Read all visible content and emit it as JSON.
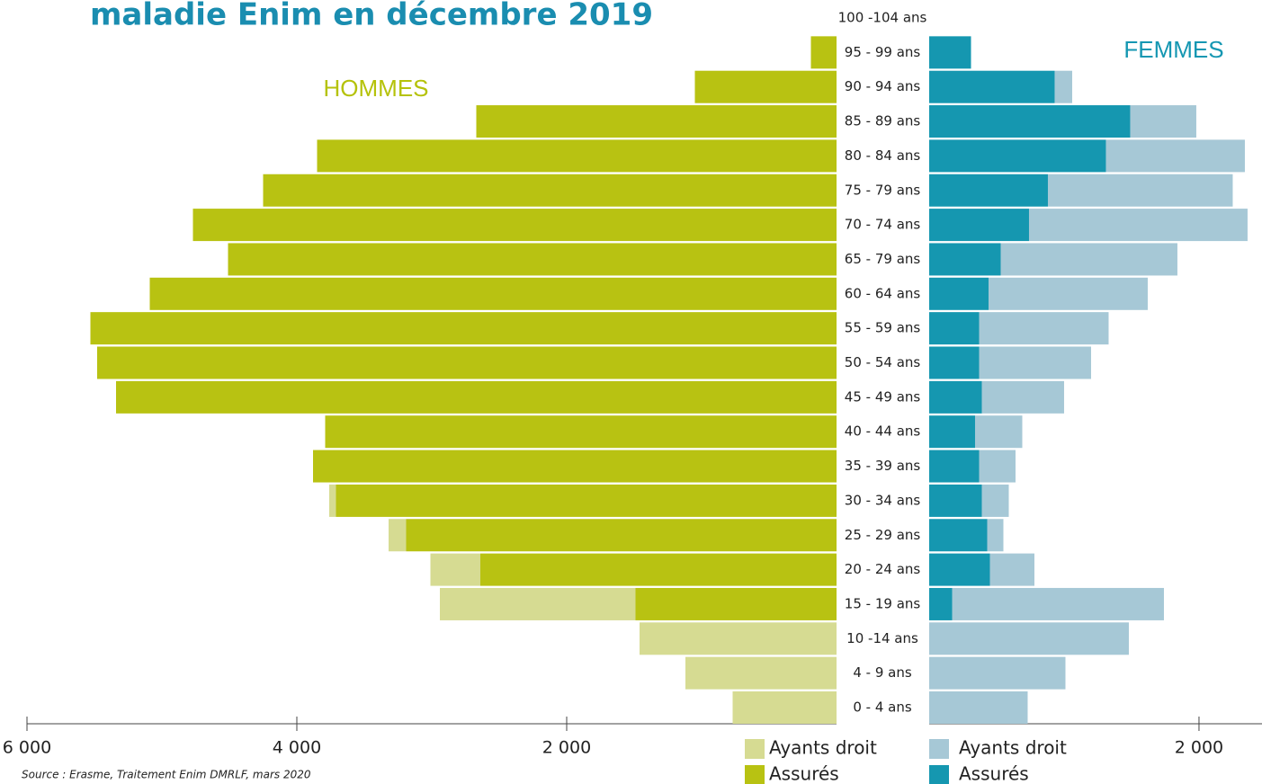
{
  "chart_data": {
    "type": "pyramid",
    "title": "maladie Enim en décembre 2019",
    "source": "Source : Erasme, Traitement Enim DMRLF, mars 2020",
    "categories": [
      "100 -104 ans",
      "95 - 99 ans",
      "90 - 94 ans",
      "85 - 89 ans",
      "80 - 84 ans",
      "75 - 79 ans",
      "70 - 74 ans",
      "65 - 79 ans",
      "60 - 64 ans",
      "55 - 59 ans",
      "50 - 54 ans",
      "45 - 49 ans",
      "40 - 44 ans",
      "35 - 39 ans",
      "30 - 34 ans",
      "25 - 29 ans",
      "20 - 24 ans",
      "15 - 19 ans",
      "10 -14 ans",
      "4 - 9 ans",
      "0 - 4 ans"
    ],
    "groups": [
      {
        "label": "HOMMES",
        "side": "left",
        "color": "#b5c20a",
        "xlim": [
          0,
          6000
        ],
        "xticks": [
          {
            "value": 6000,
            "label": "6 000"
          },
          {
            "value": 4000,
            "label": "4 000"
          },
          {
            "value": 2000,
            "label": "2 000"
          }
        ]
      },
      {
        "label": "FEMMES",
        "side": "right",
        "color": "#1597b2",
        "xlim": [
          0,
          2467
        ],
        "xticks": [
          {
            "value": 2000,
            "label": "2 000"
          }
        ]
      }
    ],
    "series": [
      {
        "name": "Ayants droit",
        "group": 0,
        "color": "#d6db92",
        "values": [
          0,
          0,
          0,
          0,
          0,
          0,
          0,
          0,
          0,
          0,
          0,
          0,
          0,
          0,
          50,
          130,
          370,
          1450,
          1460,
          1120,
          770
        ]
      },
      {
        "name": "Assurés",
        "group": 0,
        "color": "#b8c212",
        "values": [
          0,
          190,
          1050,
          2670,
          3850,
          4250,
          4770,
          4510,
          5090,
          5530,
          5480,
          5340,
          3790,
          3880,
          3710,
          3190,
          2640,
          1490,
          0,
          0,
          0
        ]
      },
      {
        "name": "Ayants droit",
        "group": 1,
        "color": "#a6c8d6",
        "values": [
          0,
          0,
          130,
          490,
          1030,
          1370,
          1620,
          1310,
          1180,
          960,
          830,
          610,
          350,
          270,
          200,
          120,
          330,
          1570,
          1480,
          1010,
          730
        ]
      },
      {
        "name": "Assurés",
        "group": 1,
        "color": "#1597b0",
        "values": [
          0,
          310,
          930,
          1490,
          1310,
          880,
          740,
          530,
          440,
          370,
          370,
          390,
          340,
          370,
          390,
          430,
          450,
          170,
          0,
          0,
          0
        ]
      }
    ]
  }
}
